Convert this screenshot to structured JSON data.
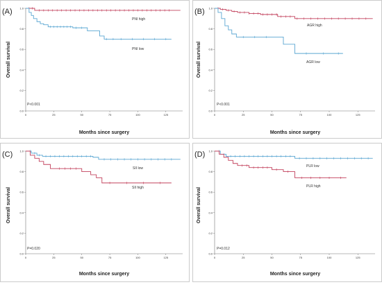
{
  "chart_data": [
    {
      "type": "line",
      "panel": "(A)",
      "xlabel": "Months since surgery",
      "ylabel": "Overall survival",
      "xlim": [
        0,
        140
      ],
      "ylim": [
        0,
        1.0
      ],
      "xticks": [
        "0",
        "25",
        "50",
        "75",
        "100",
        "125"
      ],
      "yticks": [
        "0.0",
        "0.2",
        "0.4",
        "0.6",
        "0.8",
        "1.0"
      ],
      "annotation": "P<0.001",
      "series": [
        {
          "name": "PNI high",
          "color": "#c2415c",
          "x": [
            0,
            8,
            138
          ],
          "y": [
            1.0,
            0.98,
            0.98
          ],
          "censor_x": [
            3,
            6,
            12,
            16,
            20,
            24,
            28,
            32,
            36,
            40,
            44,
            48,
            52,
            56,
            60,
            64,
            68,
            72,
            76,
            80,
            84,
            88,
            92,
            96,
            100,
            104,
            108,
            112,
            116,
            120,
            124,
            128
          ]
        },
        {
          "name": "PNI low",
          "color": "#5aa6d2",
          "x": [
            0,
            3,
            5,
            7,
            10,
            13,
            16,
            20,
            42,
            55,
            66,
            70,
            130
          ],
          "y": [
            1.0,
            0.96,
            0.93,
            0.9,
            0.87,
            0.85,
            0.84,
            0.82,
            0.81,
            0.78,
            0.73,
            0.7,
            0.7
          ],
          "censor_x": [
            22,
            25,
            28,
            31,
            34,
            37,
            40,
            45,
            50,
            72,
            78,
            85,
            95,
            105,
            115,
            125
          ]
        }
      ]
    },
    {
      "type": "line",
      "panel": "(B)",
      "xlabel": "Months since surgery",
      "ylabel": "Overall survival",
      "xlim": [
        0,
        140
      ],
      "ylim": [
        0,
        1.0
      ],
      "xticks": [
        "0",
        "25",
        "50",
        "75",
        "100",
        "125"
      ],
      "yticks": [
        "0.0",
        "0.2",
        "0.4",
        "0.6",
        "0.8",
        "1.0"
      ],
      "annotation": "P<0.001",
      "series": [
        {
          "name": "AGR high",
          "color": "#c2415c",
          "x": [
            0,
            5,
            10,
            15,
            20,
            30,
            40,
            55,
            70,
            138
          ],
          "y": [
            1.0,
            0.99,
            0.98,
            0.97,
            0.96,
            0.95,
            0.94,
            0.92,
            0.9,
            0.9
          ],
          "censor_x": [
            3,
            7,
            12,
            17,
            22,
            26,
            30,
            34,
            38,
            42,
            46,
            50,
            54,
            58,
            62,
            66,
            72,
            78,
            84,
            90,
            96,
            102,
            108,
            114,
            120,
            126,
            132
          ]
        },
        {
          "name": "AGR low",
          "color": "#5aa6d2",
          "x": [
            0,
            3,
            6,
            9,
            12,
            15,
            19,
            60,
            70,
            112
          ],
          "y": [
            1.0,
            0.96,
            0.9,
            0.83,
            0.79,
            0.75,
            0.72,
            0.65,
            0.56,
            0.56
          ],
          "censor_x": [
            25,
            35,
            45,
            80,
            95,
            108
          ]
        }
      ]
    },
    {
      "type": "line",
      "panel": "(C)",
      "xlabel": "Months since surgery",
      "ylabel": "Overall survival",
      "xlim": [
        0,
        140
      ],
      "ylim": [
        0,
        1.0
      ],
      "xticks": [
        "0",
        "25",
        "50",
        "75",
        "100",
        "125"
      ],
      "yticks": [
        "0.0",
        "0.2",
        "0.4",
        "0.6",
        "0.8",
        "1.0"
      ],
      "annotation": "P=0.020",
      "series": [
        {
          "name": "SII low",
          "color": "#5aa6d2",
          "x": [
            0,
            5,
            10,
            15,
            60,
            65,
            138
          ],
          "y": [
            1.0,
            0.98,
            0.96,
            0.95,
            0.94,
            0.92,
            0.92
          ],
          "censor_x": [
            4,
            8,
            12,
            18,
            22,
            26,
            30,
            34,
            38,
            42,
            46,
            50,
            54,
            58,
            70,
            76,
            82,
            88,
            94,
            100,
            106,
            112,
            118,
            124,
            130
          ]
        },
        {
          "name": "SII high",
          "color": "#c2415c",
          "x": [
            0,
            4,
            8,
            12,
            16,
            22,
            50,
            58,
            63,
            68,
            130
          ],
          "y": [
            1.0,
            0.96,
            0.93,
            0.9,
            0.87,
            0.83,
            0.8,
            0.77,
            0.74,
            0.69,
            0.69
          ],
          "censor_x": [
            30,
            35,
            40,
            45,
            75,
            90,
            105,
            120
          ]
        }
      ]
    },
    {
      "type": "line",
      "panel": "(D)",
      "xlabel": "Months since surgery",
      "ylabel": "Overall survival",
      "xlim": [
        0,
        140
      ],
      "ylim": [
        0,
        1.0
      ],
      "xticks": [
        "0",
        "25",
        "50",
        "75",
        "100",
        "125"
      ],
      "yticks": [
        "0.0",
        "0.2",
        "0.4",
        "0.6",
        "0.8",
        "1.0"
      ],
      "annotation": "P=0.012",
      "series": [
        {
          "name": "PLR low",
          "color": "#5aa6d2",
          "x": [
            0,
            5,
            10,
            70,
            138
          ],
          "y": [
            1.0,
            0.97,
            0.95,
            0.93,
            0.93
          ],
          "censor_x": [
            4,
            8,
            14,
            18,
            22,
            26,
            30,
            34,
            38,
            42,
            46,
            50,
            54,
            58,
            62,
            66,
            74,
            80,
            86,
            92,
            98,
            104,
            110,
            116,
            122,
            128,
            134
          ]
        },
        {
          "name": "PLR high",
          "color": "#c2415c",
          "x": [
            0,
            4,
            8,
            12,
            16,
            20,
            30,
            50,
            60,
            70,
            115
          ],
          "y": [
            1.0,
            0.97,
            0.94,
            0.91,
            0.88,
            0.86,
            0.84,
            0.82,
            0.8,
            0.74,
            0.74
          ],
          "censor_x": [
            24,
            28,
            34,
            38,
            42,
            46,
            54,
            64,
            76,
            84,
            92,
            100,
            110
          ]
        }
      ]
    }
  ]
}
